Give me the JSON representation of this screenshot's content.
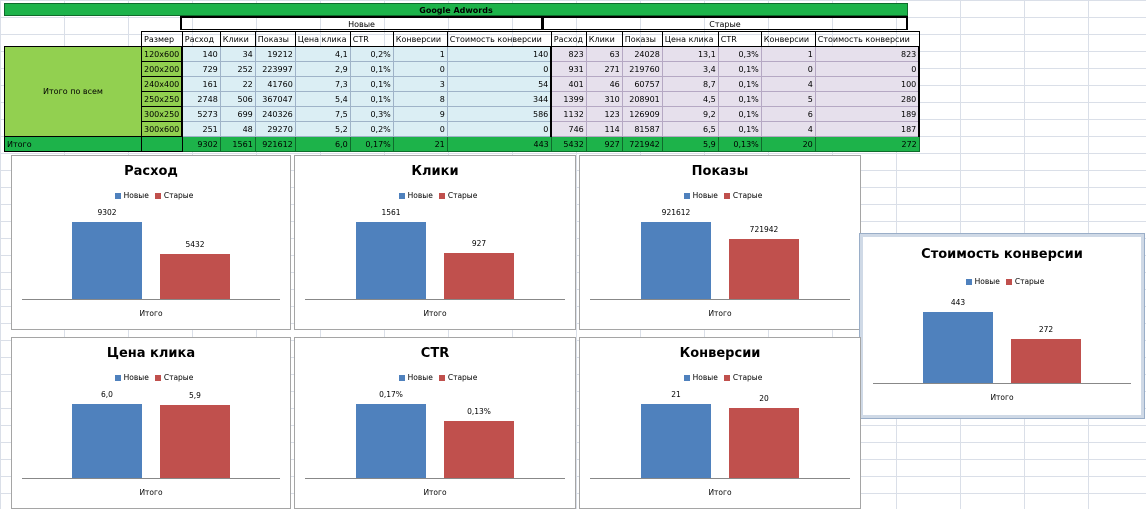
{
  "sheet": {
    "title": "Google Adwords",
    "group_new": "Новые",
    "group_old": "Старые",
    "size_header": "Размер",
    "columns": [
      "Расход",
      "Клики",
      "Показы",
      "Цена клика",
      "CTR",
      "Конверсии",
      "Стоимость конверсии"
    ],
    "row_group_label": "Итого по всем",
    "rows": [
      {
        "size": "120x600",
        "new": [
          "140",
          "34",
          "19212",
          "4,1",
          "0,2%",
          "1",
          "140"
        ],
        "old": [
          "823",
          "63",
          "24028",
          "13,1",
          "0,3%",
          "1",
          "823"
        ]
      },
      {
        "size": "200x200",
        "new": [
          "729",
          "252",
          "223997",
          "2,9",
          "0,1%",
          "0",
          "0"
        ],
        "old": [
          "931",
          "271",
          "219760",
          "3,4",
          "0,1%",
          "0",
          "0"
        ]
      },
      {
        "size": "240x400",
        "new": [
          "161",
          "22",
          "41760",
          "7,3",
          "0,1%",
          "3",
          "54"
        ],
        "old": [
          "401",
          "46",
          "60757",
          "8,7",
          "0,1%",
          "4",
          "100"
        ]
      },
      {
        "size": "250x250",
        "new": [
          "2748",
          "506",
          "367047",
          "5,4",
          "0,1%",
          "8",
          "344"
        ],
        "old": [
          "1399",
          "310",
          "208901",
          "4,5",
          "0,1%",
          "5",
          "280"
        ]
      },
      {
        "size": "300x250",
        "new": [
          "5273",
          "699",
          "240326",
          "7,5",
          "0,3%",
          "9",
          "586"
        ],
        "old": [
          "1132",
          "123",
          "126909",
          "9,2",
          "0,1%",
          "6",
          "189"
        ]
      },
      {
        "size": "300x600",
        "new": [
          "251",
          "48",
          "29270",
          "5,2",
          "0,2%",
          "0",
          "0"
        ],
        "old": [
          "746",
          "114",
          "81587",
          "6,5",
          "0,1%",
          "4",
          "187"
        ]
      }
    ],
    "total": {
      "label": "Итого",
      "new": [
        "9302",
        "1561",
        "921612",
        "6,0",
        "0,17%",
        "21",
        "443"
      ],
      "old": [
        "5432",
        "927",
        "721942",
        "5,9",
        "0,13%",
        "20",
        "272"
      ]
    }
  },
  "legend": {
    "new": "Новые",
    "old": "Старые"
  },
  "x_category": "Итого",
  "colors": {
    "new": "#4f81bd",
    "old": "#c0504d",
    "green": "#1db34a",
    "light_green": "#92d050",
    "new_fill": "#dbeef4",
    "old_fill": "#e6e0ec"
  },
  "chart_data": [
    {
      "type": "bar",
      "title": "Расход",
      "categories": [
        "Итого"
      ],
      "series": [
        {
          "name": "Новые",
          "values": [
            9302
          ]
        },
        {
          "name": "Старые",
          "values": [
            5432
          ]
        }
      ],
      "labels": [
        "9302",
        "5432"
      ]
    },
    {
      "type": "bar",
      "title": "Клики",
      "categories": [
        "Итого"
      ],
      "series": [
        {
          "name": "Новые",
          "values": [
            1561
          ]
        },
        {
          "name": "Старые",
          "values": [
            927
          ]
        }
      ],
      "labels": [
        "1561",
        "927"
      ]
    },
    {
      "type": "bar",
      "title": "Показы",
      "categories": [
        "Итого"
      ],
      "series": [
        {
          "name": "Новые",
          "values": [
            921612
          ]
        },
        {
          "name": "Старые",
          "values": [
            721942
          ]
        }
      ],
      "labels": [
        "921612",
        "721942"
      ]
    },
    {
      "type": "bar",
      "title": "Стоимость конверсии",
      "categories": [
        "Итого"
      ],
      "series": [
        {
          "name": "Новые",
          "values": [
            443
          ]
        },
        {
          "name": "Старые",
          "values": [
            272
          ]
        }
      ],
      "labels": [
        "443",
        "272"
      ]
    },
    {
      "type": "bar",
      "title": "Цена клика",
      "categories": [
        "Итого"
      ],
      "series": [
        {
          "name": "Новые",
          "values": [
            6.0
          ]
        },
        {
          "name": "Старые",
          "values": [
            5.9
          ]
        }
      ],
      "labels": [
        "6,0",
        "5,9"
      ]
    },
    {
      "type": "bar",
      "title": "CTR",
      "categories": [
        "Итого"
      ],
      "series": [
        {
          "name": "Новые",
          "values": [
            0.17
          ]
        },
        {
          "name": "Старые",
          "values": [
            0.13
          ]
        }
      ],
      "labels": [
        "0,17%",
        "0,13%"
      ]
    },
    {
      "type": "bar",
      "title": "Конверсии",
      "categories": [
        "Итого"
      ],
      "series": [
        {
          "name": "Новые",
          "values": [
            21
          ]
        },
        {
          "name": "Старые",
          "values": [
            20
          ]
        }
      ],
      "labels": [
        "21",
        "20"
      ]
    }
  ]
}
